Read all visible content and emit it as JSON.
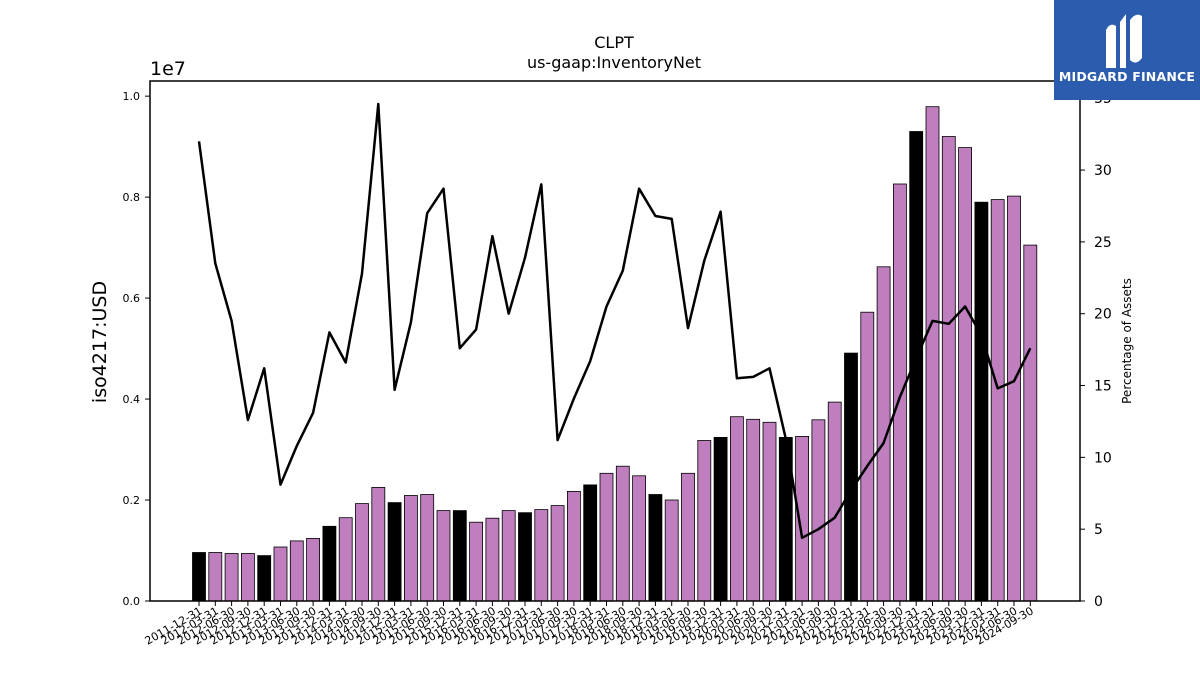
{
  "chart_data": {
    "type": "bar",
    "title": "CLPT",
    "subtitle": "us-gaap:InventoryNet",
    "ylabel": "iso4217:USD",
    "y2label": "Percentage of Assets",
    "y_offset_label": "1e7",
    "y_scale": 10000000,
    "ylim": [
      0,
      10300000
    ],
    "y2lim": [
      0,
      36.2
    ],
    "yticks": [
      "0.0",
      "0.2",
      "0.4",
      "0.6",
      "0.8",
      "1.0"
    ],
    "y2ticks": [
      "0",
      "5",
      "10",
      "15",
      "20",
      "25",
      "30",
      "35"
    ],
    "categories": [
      "2011-12-31",
      "2012-03-31",
      "2012-06-30",
      "2012-09-30",
      "2012-12-31",
      "2013-03-31",
      "2013-06-30",
      "2013-09-30",
      "2013-12-31",
      "2014-03-31",
      "2014-06-30",
      "2014-09-30",
      "2014-12-31",
      "2015-03-31",
      "2015-06-30",
      "2015-09-30",
      "2015-12-31",
      "2016-03-31",
      "2016-06-30",
      "2016-09-30",
      "2016-12-31",
      "2017-03-31",
      "2017-06-30",
      "2017-09-30",
      "2017-12-31",
      "2018-03-31",
      "2018-06-30",
      "2018-09-30",
      "2018-12-31",
      "2019-03-31",
      "2019-06-30",
      "2019-09-30",
      "2019-12-31",
      "2020-03-31",
      "2020-06-30",
      "2020-09-30",
      "2020-12-31",
      "2021-03-31",
      "2021-06-30",
      "2021-09-30",
      "2021-12-31",
      "2022-03-31",
      "2022-06-30",
      "2022-09-30",
      "2022-12-31",
      "2023-03-31",
      "2023-06-30",
      "2023-09-30",
      "2023-12-31",
      "2024-03-31",
      "2024-06-30",
      "2024-09-30"
    ],
    "series": [
      {
        "type": "bar",
        "values": [
          960000,
          960000,
          940000,
          940000,
          900000,
          1070000,
          1190000,
          1240000,
          1480000,
          1650000,
          1930000,
          2250000,
          1950000,
          2090000,
          2110000,
          1790000,
          1790000,
          1560000,
          1640000,
          1790000,
          1750000,
          1810000,
          1890000,
          2170000,
          2300000,
          2530000,
          2670000,
          2480000,
          2110000,
          2000000,
          2530000,
          3180000,
          3240000,
          3650000,
          3600000,
          3540000,
          3240000,
          3260000,
          3590000,
          3940000,
          4910000,
          5720000,
          6620000,
          8260000,
          9300000,
          9790000,
          9200000,
          8980000,
          7900000,
          7950000,
          8020000,
          7050000
        ],
        "year_end_flags": [
          1,
          0,
          0,
          0,
          1,
          0,
          0,
          0,
          1,
          0,
          0,
          0,
          1,
          0,
          0,
          0,
          1,
          0,
          0,
          0,
          1,
          0,
          0,
          0,
          1,
          0,
          0,
          0,
          1,
          0,
          0,
          0,
          1,
          0,
          0,
          0,
          1,
          0,
          0,
          0,
          1,
          0,
          0,
          0,
          1,
          0,
          0,
          0,
          1,
          0,
          0,
          0
        ]
      },
      {
        "type": "line",
        "axis": "right",
        "values": [
          32.0,
          23.5,
          19.5,
          12.6,
          16.2,
          8.1,
          10.8,
          13.1,
          18.7,
          16.6,
          22.8,
          34.6,
          14.7,
          19.4,
          27.0,
          28.7,
          17.6,
          18.9,
          25.4,
          20.0,
          23.9,
          29.0,
          11.2,
          14.1,
          16.7,
          20.5,
          23.0,
          28.7,
          26.8,
          26.6,
          19.0,
          23.7,
          27.1,
          15.5,
          15.6,
          16.2,
          11.3,
          4.4,
          5.0,
          5.8,
          7.7,
          9.4,
          11.0,
          14.2,
          16.9,
          19.5,
          19.3,
          20.5,
          18.5,
          14.8,
          15.3,
          17.6
        ]
      }
    ],
    "colors": {
      "bar": "#bf7fbf",
      "bar_year_end": "#000000",
      "line": "#000000"
    },
    "grid": false
  },
  "logo": {
    "text": "MIDGARD FINANCE",
    "icon": "midgard-logo-icon"
  }
}
